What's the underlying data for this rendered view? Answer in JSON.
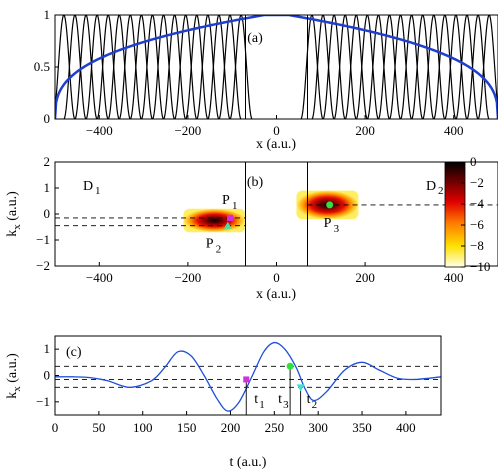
{
  "chart_data": [
    {
      "type": "line",
      "panel_label": "(a)",
      "xlabel": "x (a.u.)",
      "ylabel": "",
      "xlim": [
        -500,
        500
      ],
      "ylim": [
        0,
        1
      ],
      "xticks": [
        -400,
        -200,
        0,
        200,
        400
      ],
      "xtick_labels": [
        "−400",
        "−200",
        "0",
        "200",
        "400"
      ],
      "yticks": [
        0,
        0.5,
        1
      ],
      "ytick_labels": [
        "0",
        "0.5",
        "1"
      ],
      "vertical_lines": [
        -70,
        70
      ],
      "series": [
        {
          "role": "mask",
          "color": "#1f3fcc",
          "shape": "flat-top absorber, rising near x=-500 and falling near x=500",
          "flat_value": 1
        },
        {
          "role": "basis-functions",
          "color": "#000000",
          "left_centers": [
            -480,
            -455,
            -430,
            -405,
            -380,
            -355,
            -330,
            -305,
            -280,
            -255,
            -230,
            -205,
            -180,
            -155,
            -130,
            -105,
            -80
          ],
          "right_centers": [
            80,
            105,
            130,
            155,
            180,
            205,
            230,
            255,
            280,
            305,
            330,
            355,
            380,
            405,
            430,
            455,
            480
          ],
          "period": 25,
          "peak": 1
        }
      ]
    },
    {
      "type": "heatmap",
      "panel_label": "(b)",
      "xlabel": "x (a.u.)",
      "ylabel": "k_x (a.u.)",
      "xlim": [
        -500,
        500
      ],
      "ylim": [
        -2,
        2
      ],
      "xticks": [
        -400,
        -200,
        0,
        200,
        400
      ],
      "xtick_labels": [
        "−400",
        "−200",
        "0",
        "200",
        "400"
      ],
      "yticks": [
        -2,
        -1,
        0,
        1,
        2
      ],
      "ytick_labels": [
        "−2",
        "−1",
        "0",
        "1",
        "2"
      ],
      "colorbar": {
        "min": -10,
        "max": 0,
        "ticks": [
          0,
          -2,
          -4,
          -6,
          -8,
          -10
        ],
        "tick_labels": [
          "0",
          "−2",
          "−4",
          "−6",
          "−8",
          "−10"
        ],
        "colormap": "hot"
      },
      "regions": [
        {
          "label": "D",
          "sub": "1"
        },
        {
          "label": "D",
          "sub": "2"
        }
      ],
      "vertical_lines": [
        -70,
        70
      ],
      "dashed_levels": [
        -0.15,
        -0.45,
        0.35
      ],
      "blobs": [
        {
          "x": -140,
          "k": -0.25,
          "width": 140,
          "height": 0.9
        },
        {
          "x": 115,
          "k": 0.35,
          "width": 140,
          "height": 1.1
        }
      ],
      "points": [
        {
          "name": "P",
          "sub": "1",
          "x": -105,
          "k": -0.15,
          "marker": "square",
          "color": "#d030e0"
        },
        {
          "name": "P",
          "sub": "2",
          "x": -110,
          "k": -0.45,
          "marker": "triangle",
          "color": "#40e0a0"
        },
        {
          "name": "P",
          "sub": "3",
          "x": 120,
          "k": 0.35,
          "marker": "circle",
          "color": "#30e040"
        }
      ]
    },
    {
      "type": "line",
      "panel_label": "(c)",
      "xlabel": "t (a.u.)",
      "ylabel": "k_x (a.u.)",
      "xlim": [
        0,
        440
      ],
      "ylim": [
        -1.5,
        1.5
      ],
      "xticks": [
        0,
        50,
        100,
        150,
        200,
        250,
        300,
        350,
        400
      ],
      "xtick_labels": [
        "0",
        "50",
        "100",
        "150",
        "200",
        "250",
        "300",
        "350",
        "400"
      ],
      "yticks": [
        -1,
        0,
        1
      ],
      "ytick_labels": [
        "−1",
        "0",
        "1"
      ],
      "dashed_levels": [
        0.35,
        -0.15,
        -0.45
      ],
      "series": [
        {
          "color": "#1f4fd8",
          "x": [
            0,
            20,
            40,
            60,
            85,
            110,
            125,
            140,
            155,
            170,
            185,
            197,
            210,
            225,
            238,
            250,
            262,
            275,
            285,
            295,
            310,
            330,
            350,
            370,
            390,
            410,
            440
          ],
          "y": [
            -0.05,
            -0.05,
            -0.08,
            -0.2,
            -0.45,
            -0.2,
            0.3,
            0.9,
            0.75,
            0.0,
            -0.9,
            -1.35,
            -1.0,
            0.0,
            0.9,
            1.25,
            1.0,
            0.3,
            -0.5,
            -0.95,
            -0.6,
            0.2,
            0.5,
            0.2,
            -0.1,
            -0.15,
            -0.05
          ]
        }
      ],
      "events": [
        {
          "name": "t",
          "sub": "1",
          "t": 218,
          "k": -0.15,
          "marker": "square",
          "color": "#d030e0"
        },
        {
          "name": "t",
          "sub": "3",
          "t": 268,
          "k": 0.35,
          "marker": "circle",
          "color": "#30e040"
        },
        {
          "name": "t",
          "sub": "2",
          "t": 280,
          "k": -0.45,
          "marker": "triangle",
          "color": "#40e0d0"
        }
      ]
    }
  ]
}
